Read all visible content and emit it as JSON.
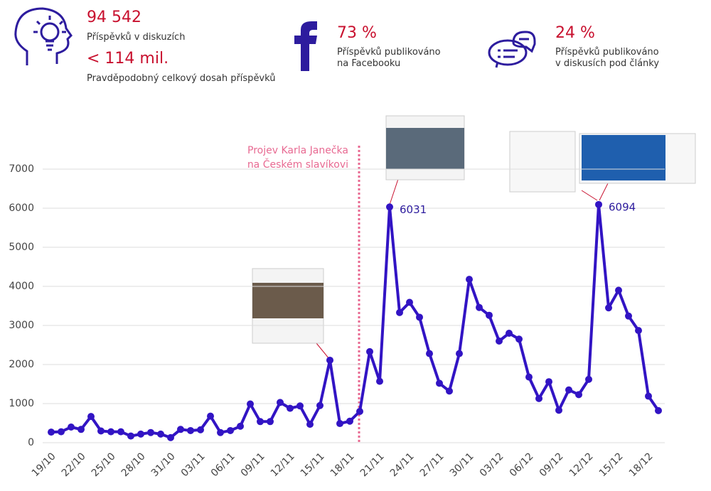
{
  "header": {
    "stats": [
      {
        "value": "94 542",
        "label": [
          "Příspěvků v diskuzích"
        ]
      },
      {
        "value": "< 114 mil.",
        "label": [
          "Pravděpodobný celkový dosah příspěvků"
        ]
      },
      {
        "value": "73 %",
        "label": [
          "Příspěvků publikováno",
          "na Facebooku"
        ]
      },
      {
        "value": "24 %",
        "label": [
          "Příspěvků publikováno",
          "v diskusích pod články"
        ]
      }
    ]
  },
  "chart_data": {
    "type": "line",
    "color": "#3214c4",
    "grid": true,
    "categories": [
      "19/10",
      null,
      null,
      "22/10",
      null,
      null,
      "25/10",
      null,
      null,
      "28/10",
      null,
      null,
      "31/10",
      null,
      null,
      "03/11",
      null,
      null,
      "06/11",
      null,
      null,
      "09/11",
      null,
      null,
      "12/11",
      null,
      null,
      "15/11",
      null,
      null,
      "18/11",
      null,
      null,
      "21/11",
      null,
      null,
      "24/11",
      null,
      null,
      "27/11",
      null,
      null,
      "30/11",
      null,
      null,
      "03/12",
      null,
      null,
      "06/12",
      null,
      null,
      "09/12",
      null,
      null,
      "12/12",
      null,
      null,
      "15/12",
      null,
      null,
      "18/12",
      null
    ],
    "values": [
      270,
      280,
      400,
      340,
      670,
      300,
      280,
      280,
      170,
      220,
      260,
      220,
      130,
      340,
      310,
      330,
      680,
      260,
      310,
      420,
      990,
      540,
      540,
      1030,
      880,
      940,
      470,
      950,
      2110,
      490,
      550,
      800,
      2330,
      1570,
      6031,
      3330,
      3590,
      3210,
      2280,
      1520,
      1320,
      2280,
      4180,
      3460,
      3260,
      2600,
      2800,
      2650,
      1680,
      1130,
      1560,
      830,
      1350,
      1230,
      1620,
      6094,
      3450,
      3900,
      3240,
      2870,
      1190,
      820
    ],
    "ylim": [
      0,
      7000
    ],
    "yticks": [
      0,
      1000,
      2000,
      3000,
      4000,
      5000,
      6000,
      7000
    ],
    "annotation": [
      "Projev Karla Janečka",
      "na Českém slavíkovi"
    ]
  }
}
